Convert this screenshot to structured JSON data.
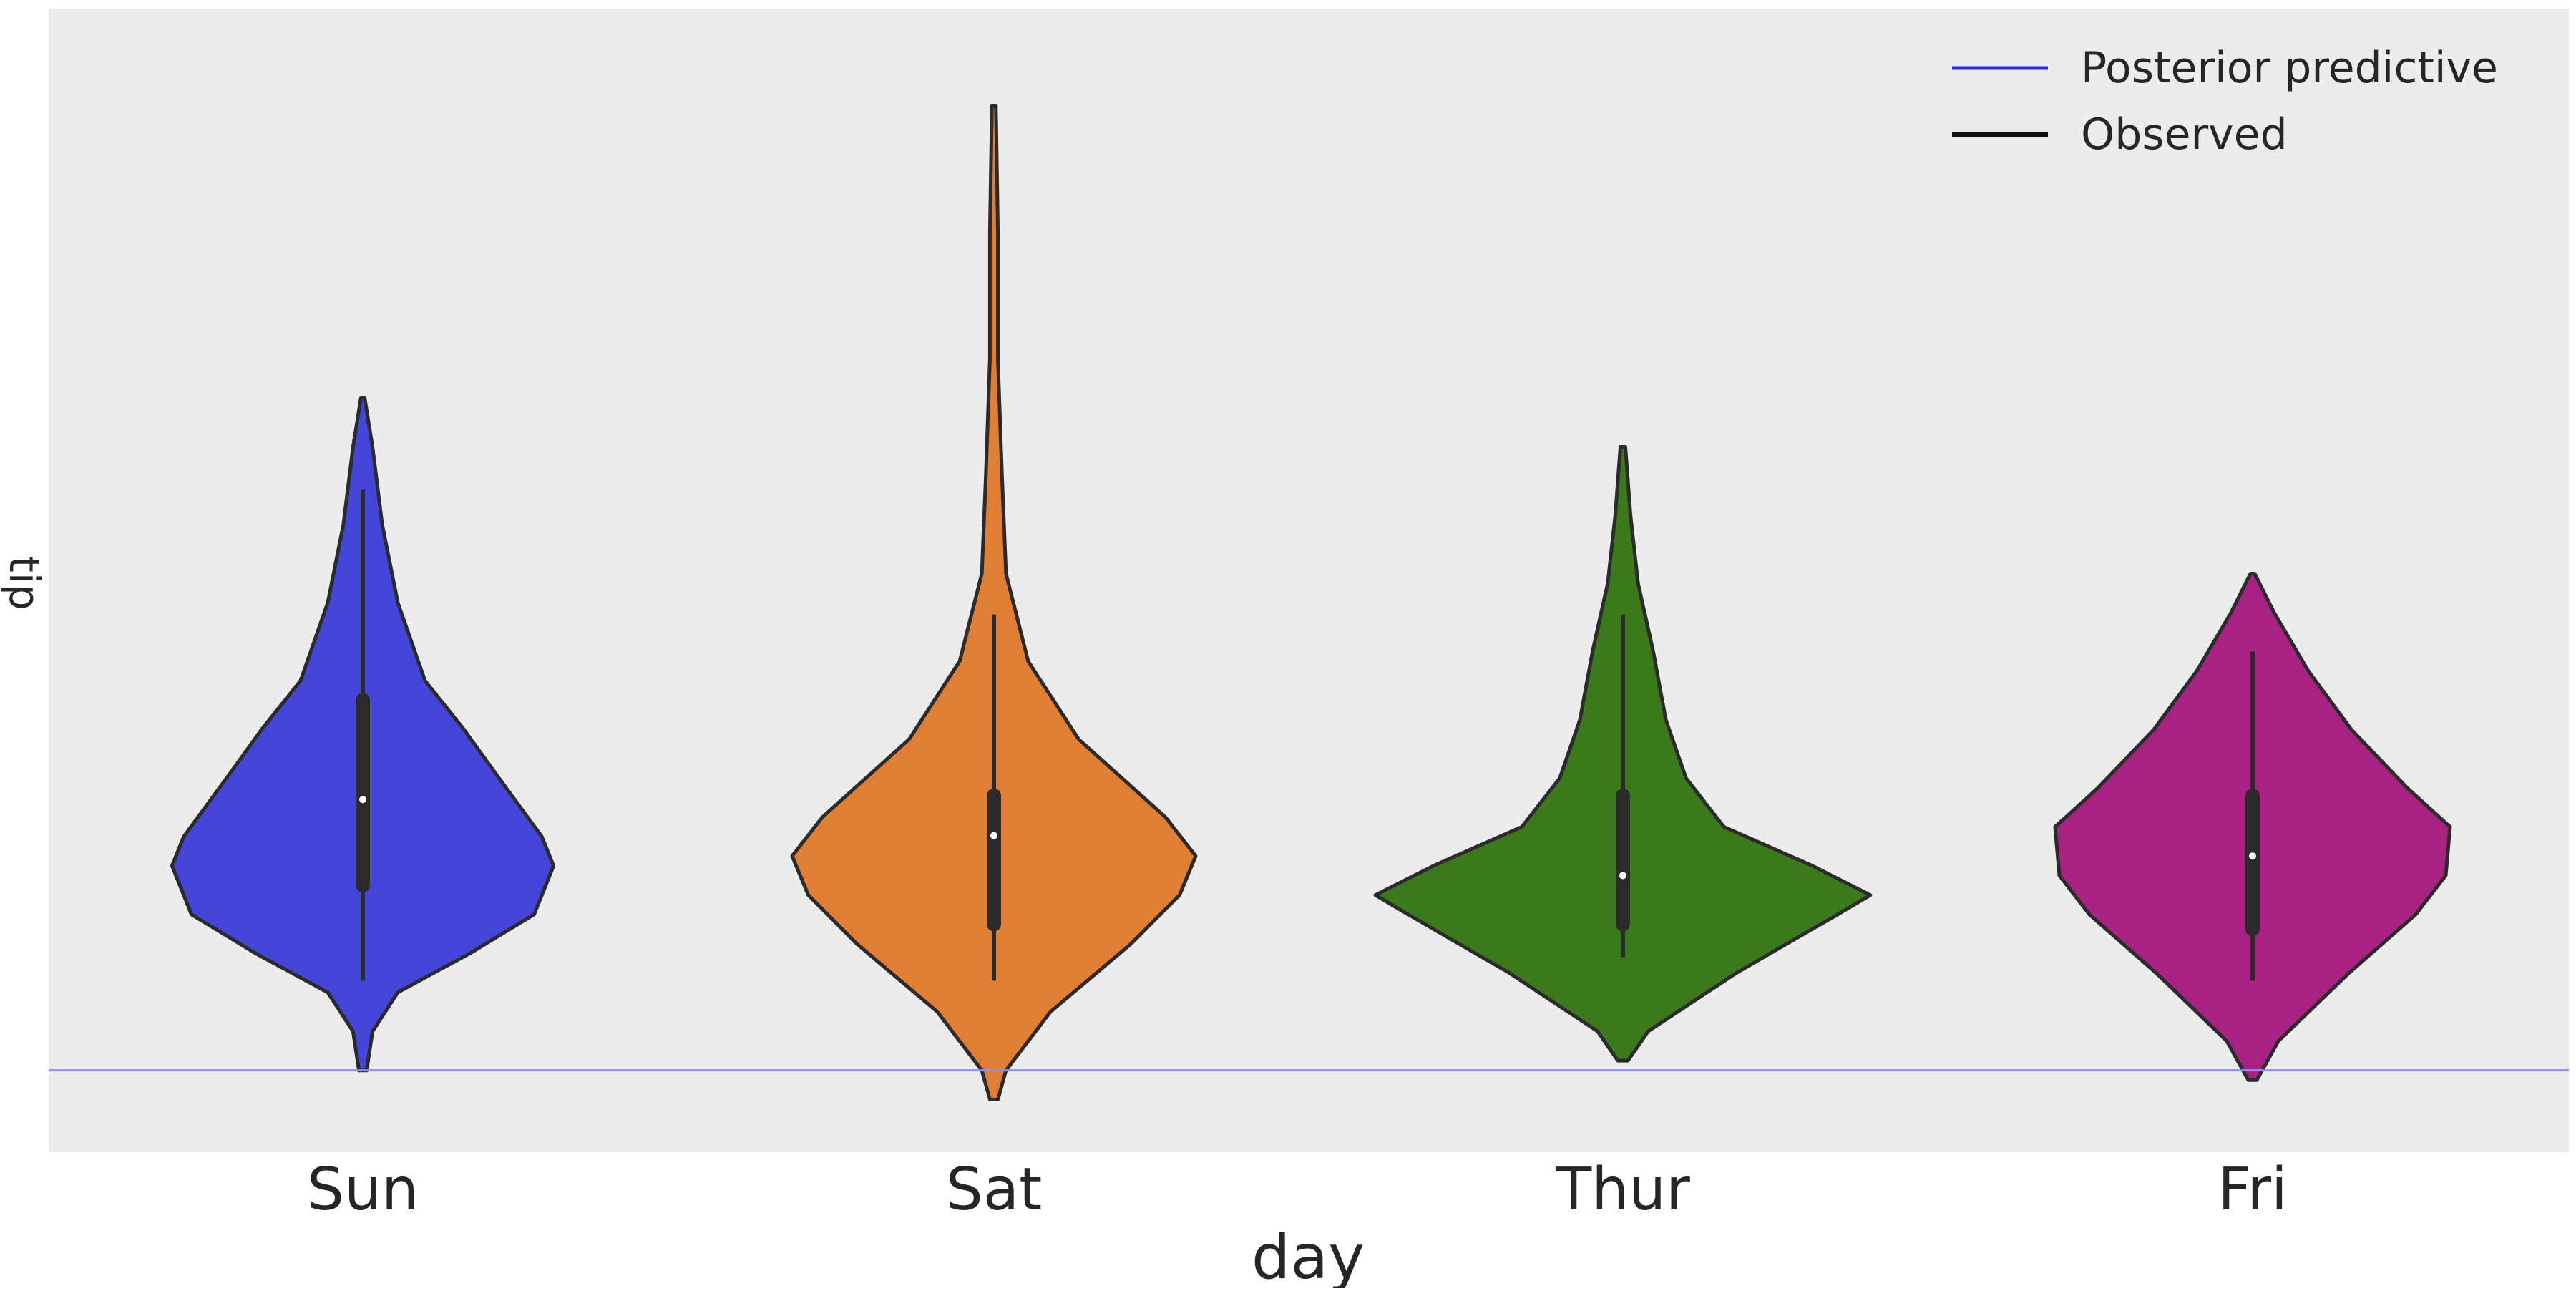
{
  "chart_data": {
    "type": "violin",
    "xlabel": "day",
    "ylabel": "tip",
    "categories": [
      "Sun",
      "Sat",
      "Thur",
      "Fri"
    ],
    "ylim": [
      0.36,
      12.1
    ],
    "yticks_visible": false,
    "grid": false,
    "background": "#ececec",
    "legend": {
      "placement": "top-right",
      "entries": [
        {
          "label": "Posterior predictive",
          "color": "#2a2ad6"
        },
        {
          "label": "Observed",
          "color": "#111111"
        }
      ]
    },
    "reference_line": {
      "y": 1.2,
      "color": "#8f8ff0"
    },
    "violins": [
      {
        "day": "Sun",
        "color": "#4346d9",
        "y_min": 1.2,
        "y_max": 8.1,
        "profile": [
          [
            1.2,
            0.02
          ],
          [
            1.6,
            0.05
          ],
          [
            2.0,
            0.18
          ],
          [
            2.4,
            0.55
          ],
          [
            2.8,
            0.88
          ],
          [
            3.3,
            0.98
          ],
          [
            3.6,
            0.92
          ],
          [
            4.2,
            0.7
          ],
          [
            4.7,
            0.52
          ],
          [
            5.2,
            0.32
          ],
          [
            6.0,
            0.18
          ],
          [
            6.8,
            0.1
          ],
          [
            7.6,
            0.05
          ],
          [
            8.1,
            0.01
          ]
        ],
        "whisker": [
          2.12,
          7.16
        ],
        "iqr": [
          3.1,
          5.0
        ],
        "median": 3.98
      },
      {
        "day": "Sat",
        "color": "#e07f34",
        "y_min": 0.9,
        "y_max": 11.1,
        "profile": [
          [
            0.9,
            0.02
          ],
          [
            1.2,
            0.06
          ],
          [
            1.8,
            0.28
          ],
          [
            2.5,
            0.68
          ],
          [
            3.0,
            0.92
          ],
          [
            3.4,
            1.0
          ],
          [
            3.8,
            0.85
          ],
          [
            4.6,
            0.42
          ],
          [
            5.4,
            0.17
          ],
          [
            6.3,
            0.06
          ],
          [
            7.3,
            0.04
          ],
          [
            8.5,
            0.02
          ],
          [
            9.8,
            0.02
          ],
          [
            11.1,
            0.01
          ]
        ],
        "whisker": [
          2.12,
          5.88
        ],
        "iqr": [
          2.7,
          4.02
        ],
        "median": 3.61
      },
      {
        "day": "Thur",
        "color": "#3a7a1a",
        "y_min": 1.3,
        "y_max": 7.6,
        "profile": [
          [
            1.3,
            0.02
          ],
          [
            1.6,
            0.1
          ],
          [
            2.2,
            0.45
          ],
          [
            2.8,
            0.85
          ],
          [
            3.0,
            0.98
          ],
          [
            3.3,
            0.75
          ],
          [
            3.7,
            0.4
          ],
          [
            4.2,
            0.25
          ],
          [
            4.8,
            0.17
          ],
          [
            5.5,
            0.12
          ],
          [
            6.2,
            0.06
          ],
          [
            6.9,
            0.03
          ],
          [
            7.6,
            0.01
          ]
        ],
        "whisker": [
          2.36,
          5.88
        ],
        "iqr": [
          2.7,
          4.02
        ],
        "median": 3.2
      },
      {
        "day": "Fri",
        "color": "#a82283",
        "y_min": 1.1,
        "y_max": 6.3,
        "profile": [
          [
            1.1,
            0.02
          ],
          [
            1.5,
            0.12
          ],
          [
            2.2,
            0.45
          ],
          [
            2.8,
            0.76
          ],
          [
            3.2,
            0.9
          ],
          [
            3.7,
            0.92
          ],
          [
            4.1,
            0.72
          ],
          [
            4.7,
            0.46
          ],
          [
            5.3,
            0.26
          ],
          [
            5.9,
            0.1
          ],
          [
            6.3,
            0.01
          ]
        ],
        "whisker": [
          2.12,
          5.5
        ],
        "iqr": [
          2.65,
          4.02
        ],
        "median": 3.4
      }
    ]
  }
}
